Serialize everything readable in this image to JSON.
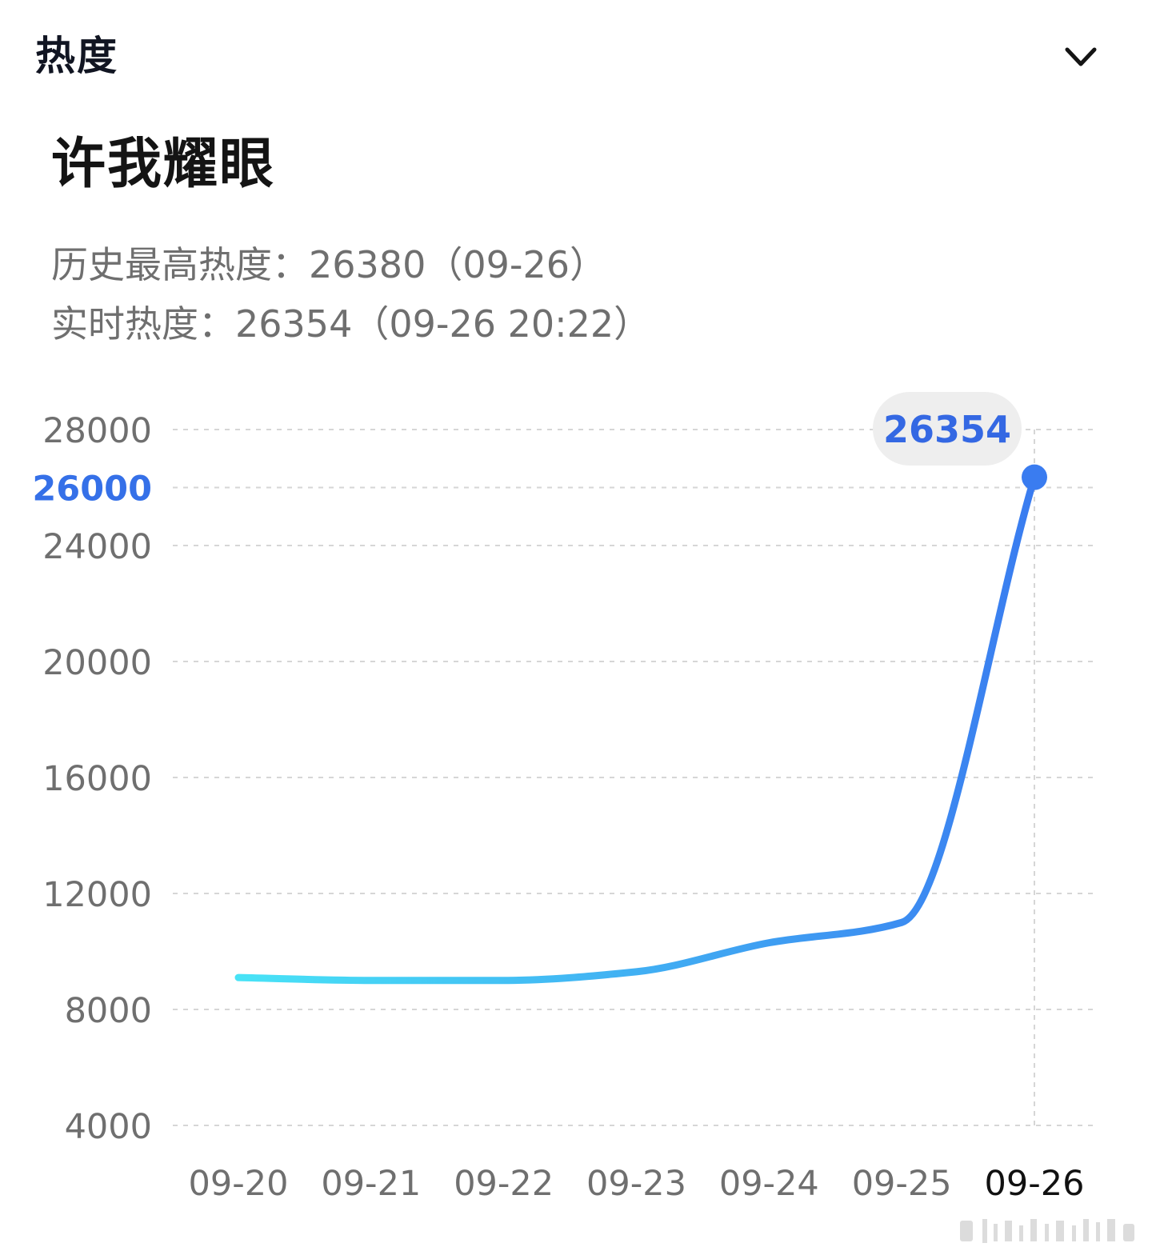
{
  "header": {
    "title": "热度",
    "toggle_icon": "chevron-down-icon"
  },
  "item": {
    "title": "许我耀眼"
  },
  "stats": {
    "history_peak": "历史最高热度：26380（09-26）",
    "realtime": "实时热度：26354（09-26 20:22）"
  },
  "colors": {
    "line_start": "#48E3F6",
    "line_end": "#3A7CF0",
    "highlight_tick": "#3570E8",
    "tooltip_text": "#3468E3",
    "tooltip_bg": "#EEEEEE",
    "axis_text": "#6f6f6f",
    "active_x_label": "#111111",
    "gridline": "#D6D6D6"
  },
  "chart_data": {
    "type": "line",
    "title": "",
    "xlabel": "",
    "ylabel": "",
    "categories": [
      "09-20",
      "09-21",
      "09-22",
      "09-23",
      "09-24",
      "09-25",
      "09-26"
    ],
    "ticks": [
      4000,
      8000,
      12000,
      16000,
      20000,
      24000,
      26000,
      28000
    ],
    "tick_labels": [
      "4000",
      "8000",
      "12000",
      "16000",
      "20000",
      "24000",
      "26000",
      "28000"
    ],
    "highlighted_tick": "26000",
    "ylim": [
      4000,
      28000
    ],
    "grid": true,
    "series": [
      {
        "values": [
          9100,
          9000,
          9000,
          9300,
          10300,
          11000,
          26354
        ]
      }
    ],
    "active_point": {
      "category": "09-26",
      "value": 26354,
      "label": "26354"
    },
    "active_x_label": "09-26"
  }
}
